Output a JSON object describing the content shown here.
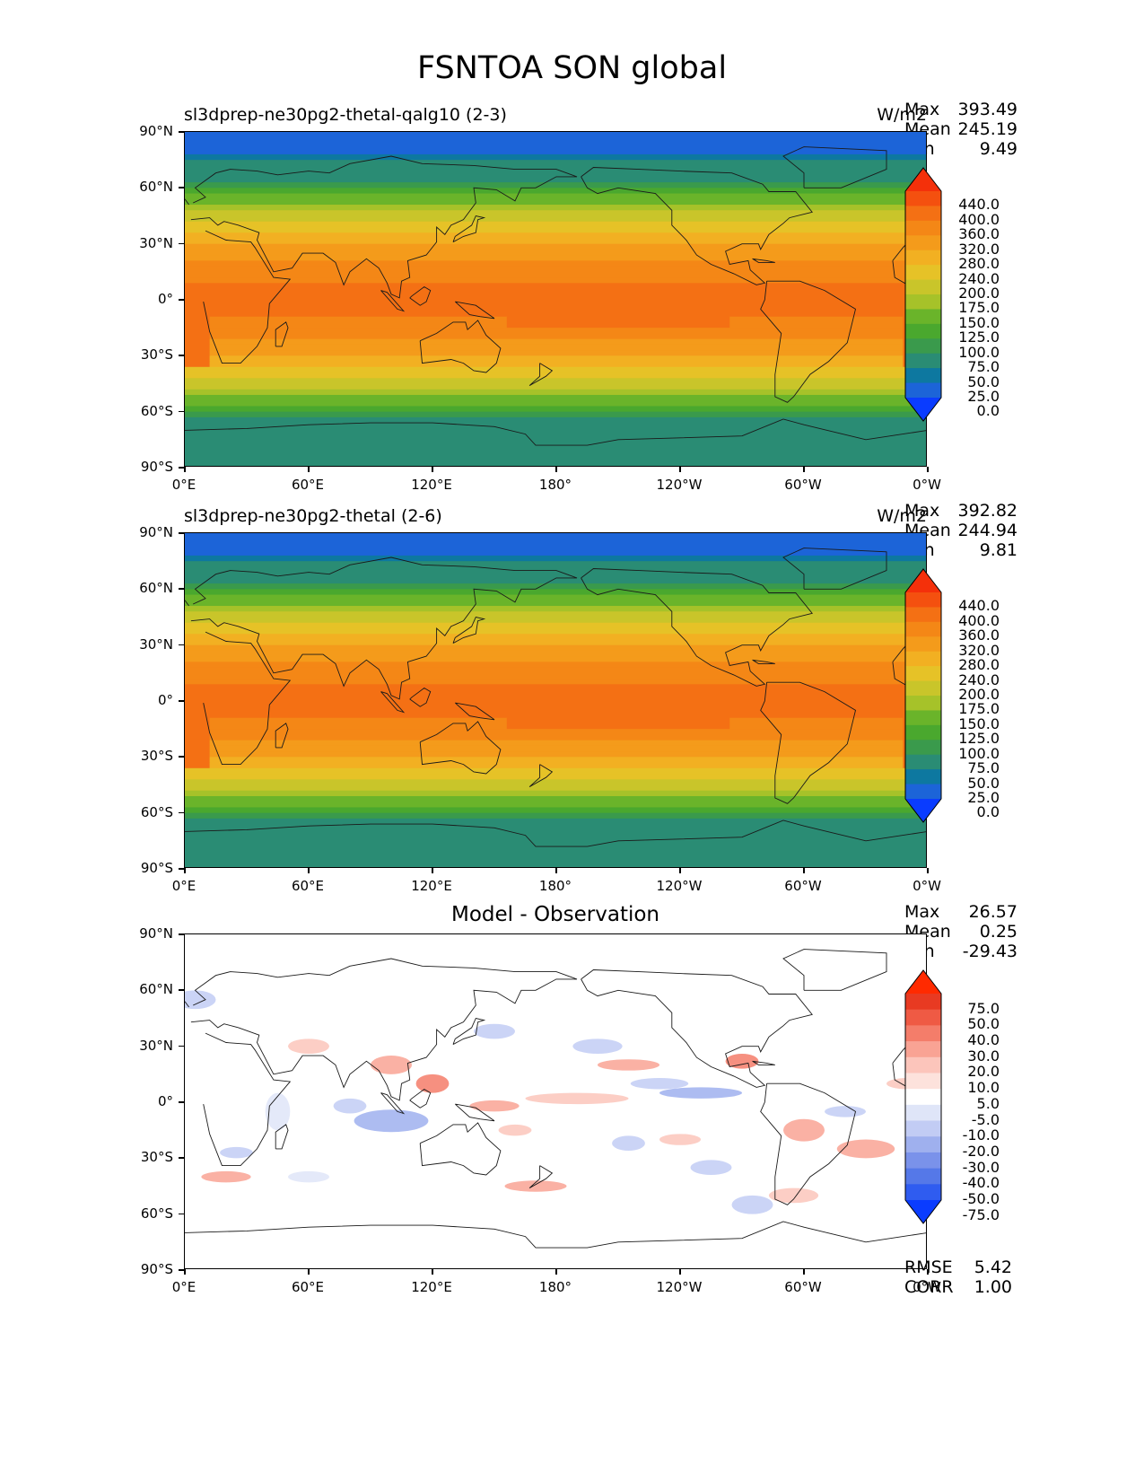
{
  "figure_title": "FSNTOA SON global",
  "yticks": [
    "90°N",
    "60°N",
    "30°N",
    "0°",
    "30°S",
    "60°S",
    "90°S"
  ],
  "xticks": [
    "0°E",
    "60°E",
    "120°E",
    "180°",
    "120°W",
    "60°W",
    "0°W"
  ],
  "units": "W/m2",
  "panels": [
    {
      "title": "sl3dprep-ne30pg2-thetal-qalg10 (2-3)",
      "stats": {
        "max_label": "Max",
        "max": "393.49",
        "mean_label": "Mean",
        "mean": "245.19",
        "min_label": "Min",
        "min": "9.49"
      },
      "colorbar_labels": [
        "440.0",
        "400.0",
        "360.0",
        "320.0",
        "280.0",
        "240.0",
        "200.0",
        "175.0",
        "150.0",
        "125.0",
        "100.0",
        "75.0",
        "50.0",
        "25.0",
        "0.0"
      ]
    },
    {
      "title": "sl3dprep-ne30pg2-thetal (2-6)",
      "stats": {
        "max_label": "Max",
        "max": "392.82",
        "mean_label": "Mean",
        "mean": "244.94",
        "min_label": "Min",
        "min": "9.81"
      },
      "colorbar_labels": [
        "440.0",
        "400.0",
        "360.0",
        "320.0",
        "280.0",
        "240.0",
        "200.0",
        "175.0",
        "150.0",
        "125.0",
        "100.0",
        "75.0",
        "50.0",
        "25.0",
        "0.0"
      ]
    },
    {
      "title": "Model - Observation",
      "stats": {
        "max_label": "Max",
        "max": "26.57",
        "mean_label": "Mean",
        "mean": "0.25",
        "min_label": "Min",
        "min": "-29.43"
      },
      "colorbar_labels": [
        "75.0",
        "50.0",
        "40.0",
        "30.0",
        "20.0",
        "10.0",
        "5.0",
        "-5.0",
        "-10.0",
        "-20.0",
        "-30.0",
        "-40.0",
        "-50.0",
        "-75.0"
      ],
      "rmse_label": "RMSE",
      "rmse": "5.42",
      "corr_label": "CORR",
      "corr": "1.00"
    }
  ],
  "colors": {
    "field_scale": [
      "#0a3cff",
      "#1c64d8",
      "#0d78a0",
      "#2a8c74",
      "#3a9a4c",
      "#4aa82e",
      "#6ab42a",
      "#a6c229",
      "#c9c52a",
      "#e6c227",
      "#f2b022",
      "#f49b1b",
      "#f48716",
      "#f47014",
      "#f4500f",
      "#f4300a"
    ],
    "diff_scale": [
      "#0a3cff",
      "#2f5cf0",
      "#5578e8",
      "#7a92ea",
      "#9fb0ee",
      "#c2ccf4",
      "#dfe5f8",
      "#ffffff",
      "#fde2dc",
      "#fcc5bb",
      "#f9a394",
      "#f47d6a",
      "#ef5a44",
      "#e83a22",
      "#ff2a00"
    ]
  }
}
